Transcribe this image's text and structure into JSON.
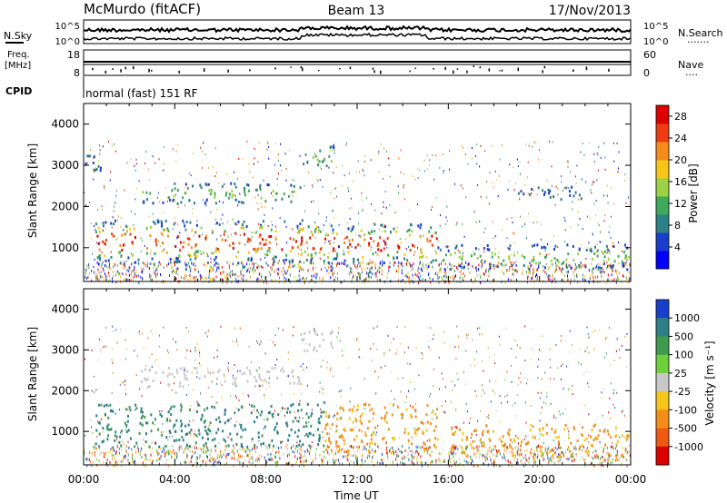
{
  "header": {
    "station": "McMurdo (fitACF)",
    "beam": "Beam 13",
    "date": "17/Nov/2013"
  },
  "noise_panel": {
    "left_label": "N.Sky",
    "right_label": "N.Search",
    "right_dots": "·······",
    "ticks_left": [
      "10^5",
      "10^0"
    ],
    "ticks_right": [
      "10^5",
      "10^0"
    ]
  },
  "freq_panel": {
    "left_label_1": "Freq.",
    "left_label_2": "[MHz]",
    "right_label": "Nave",
    "right_dots": "····",
    "ticks_left": [
      "18",
      "8"
    ],
    "ticks_right": [
      "60",
      "0"
    ]
  },
  "cpid": {
    "label": "CPID",
    "value": "normal (fast) 151 RF"
  },
  "chart_data": [
    {
      "type": "heatmap",
      "title": "",
      "ylabel": "Slant Range [km]",
      "xlabel": "",
      "xlim": [
        "00:00",
        "24:00"
      ],
      "ylim": [
        180,
        4500
      ],
      "yticks": [
        1000,
        2000,
        3000,
        4000
      ],
      "colorbar": {
        "label": "Power [dB]",
        "ticks": [
          "4",
          "8",
          "12",
          "16",
          "20",
          "24",
          "28"
        ],
        "range": [
          0,
          30
        ],
        "colors": [
          "#0000ff",
          "#1a3ecc",
          "#2d7f86",
          "#3fa85a",
          "#9bd143",
          "#f5c518",
          "#f58c1a",
          "#ee3b12",
          "#dd0000"
        ]
      },
      "features": [
        {
          "t0": 0.0,
          "t1": 0.8,
          "r0": 2900,
          "r1": 3500,
          "level": "low"
        },
        {
          "t0": 2.5,
          "t1": 9.5,
          "r0": 2100,
          "r1": 2600,
          "level": "medium"
        },
        {
          "t0": 0.5,
          "t1": 10.5,
          "r0": 650,
          "r1": 1700,
          "level": "high"
        },
        {
          "t0": 10.5,
          "t1": 15.5,
          "r0": 650,
          "r1": 1600,
          "level": "high"
        },
        {
          "t0": 15.5,
          "t1": 24.0,
          "r0": 500,
          "r1": 1100,
          "level": "medium"
        },
        {
          "t0": 9.5,
          "t1": 11.0,
          "r0": 3000,
          "r1": 3500,
          "level": "medium"
        },
        {
          "t0": 19.0,
          "t1": 22.0,
          "r0": 2200,
          "r1": 2500,
          "level": "low"
        }
      ]
    },
    {
      "type": "heatmap",
      "title": "",
      "ylabel": "Slant Range [km]",
      "xlabel": "Time UT",
      "xlim": [
        "00:00",
        "24:00"
      ],
      "ylim": [
        180,
        4500
      ],
      "yticks": [
        1000,
        2000,
        3000,
        4000
      ],
      "xticks": [
        "00:00",
        "04:00",
        "08:00",
        "12:00",
        "16:00",
        "20:00",
        "00:00"
      ],
      "colorbar": {
        "label": "Velocity [m s⁻¹]",
        "ticks": [
          "1000",
          "500",
          "100",
          "25",
          "-25",
          "-100",
          "-500",
          "-1000"
        ],
        "colors": [
          "#1a3ecc",
          "#2d7f86",
          "#3f9a4f",
          "#6fcf3a",
          "#c8c8c8",
          "#f5c518",
          "#f58c1a",
          "#ee5a12",
          "#dd0000"
        ]
      },
      "features": [
        {
          "t0": 2.5,
          "t1": 9.5,
          "r0": 2100,
          "r1": 2600,
          "level": "grey"
        },
        {
          "t0": 0.5,
          "t1": 10.5,
          "r0": 650,
          "r1": 1700,
          "level": "green"
        },
        {
          "t0": 10.5,
          "t1": 15.5,
          "r0": 500,
          "r1": 1700,
          "level": "orange"
        },
        {
          "t0": 16.0,
          "t1": 24.0,
          "r0": 400,
          "r1": 1200,
          "level": "orange"
        },
        {
          "t0": 9.5,
          "t1": 11.0,
          "r0": 3000,
          "r1": 3500,
          "level": "grey"
        }
      ]
    }
  ]
}
